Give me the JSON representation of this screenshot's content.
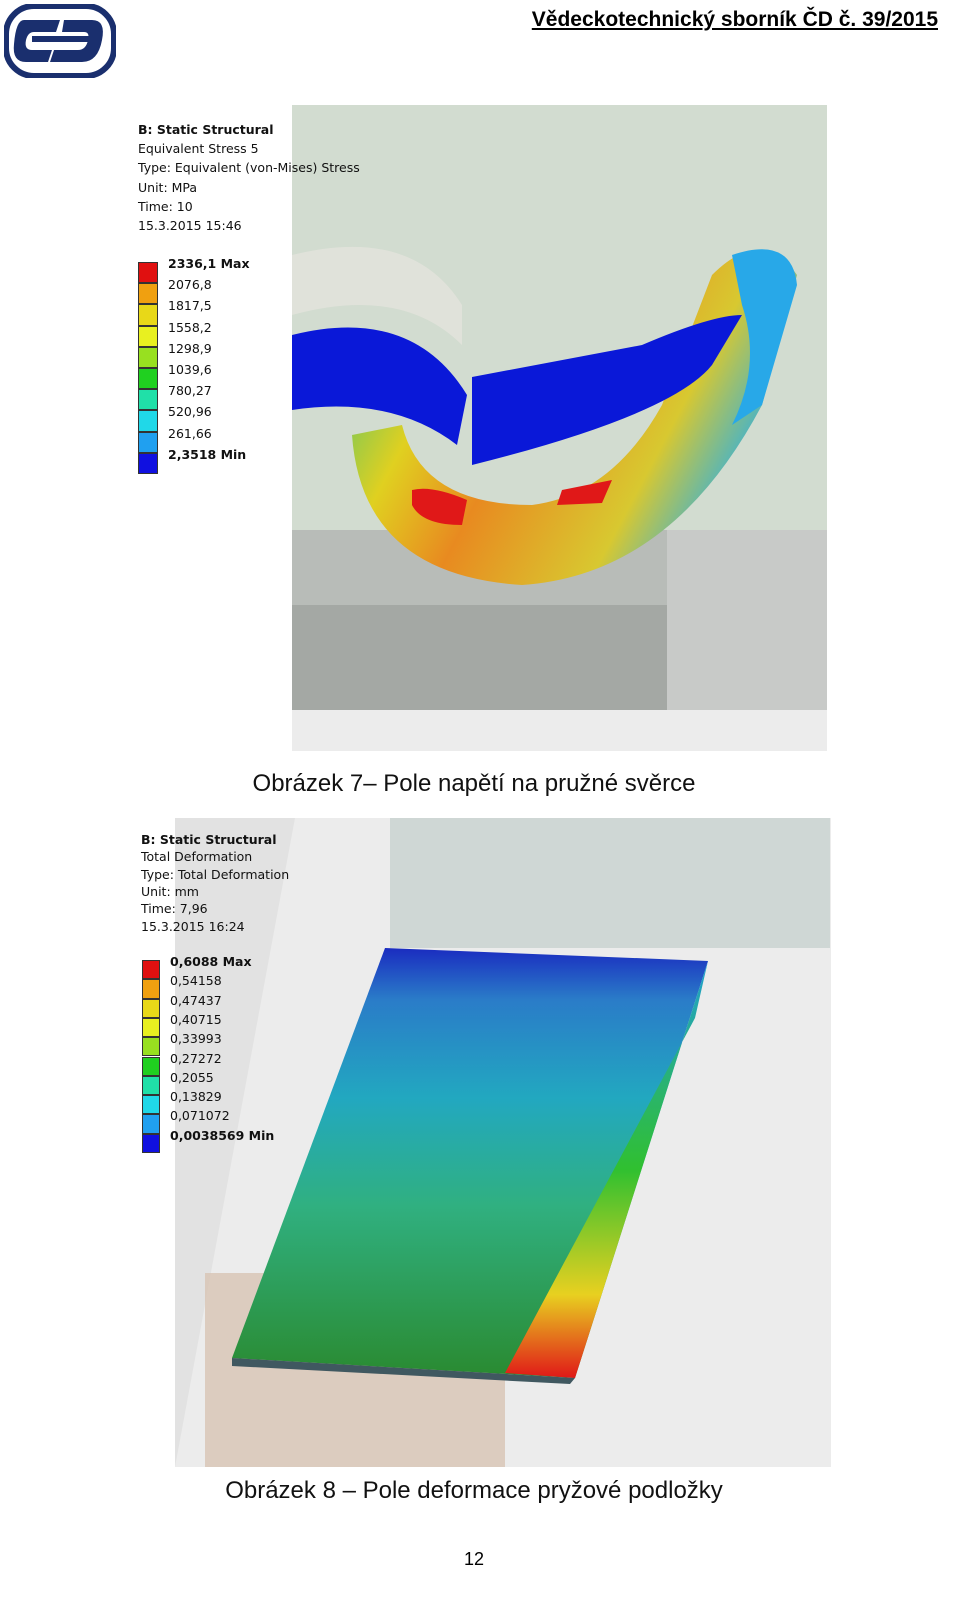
{
  "header": {
    "title": "Vědeckotechnický sborník ČD č. 39/2015"
  },
  "figures": [
    {
      "info": [
        "B: Static Structural",
        "Equivalent Stress 5",
        "Type: Equivalent (von-Mises) Stress",
        "Unit: MPa",
        "Time: 10",
        "15.3.2015 15:46"
      ],
      "legend": [
        "2336,1 Max",
        "2076,8",
        "1817,5",
        "1558,2",
        "1298,9",
        "1039,6",
        "780,27",
        "520,96",
        "261,66",
        "2,3518 Min"
      ],
      "caption": "Obrázek 7– Pole napětí na pružné svěrce"
    },
    {
      "info": [
        "B: Static Structural",
        "Total Deformation",
        "Type: Total Deformation",
        "Unit: mm",
        "Time: 7,96",
        "15.3.2015 16:24"
      ],
      "legend": [
        "0,6088 Max",
        "0,54158",
        "0,47437",
        "0,40715",
        "0,33993",
        "0,27272",
        "0,2055",
        "0,13829",
        "0,071072",
        "0,0038569 Min"
      ],
      "caption": "Obrázek 8 – Pole deformace pryžové podložky"
    }
  ],
  "page_number": "12"
}
